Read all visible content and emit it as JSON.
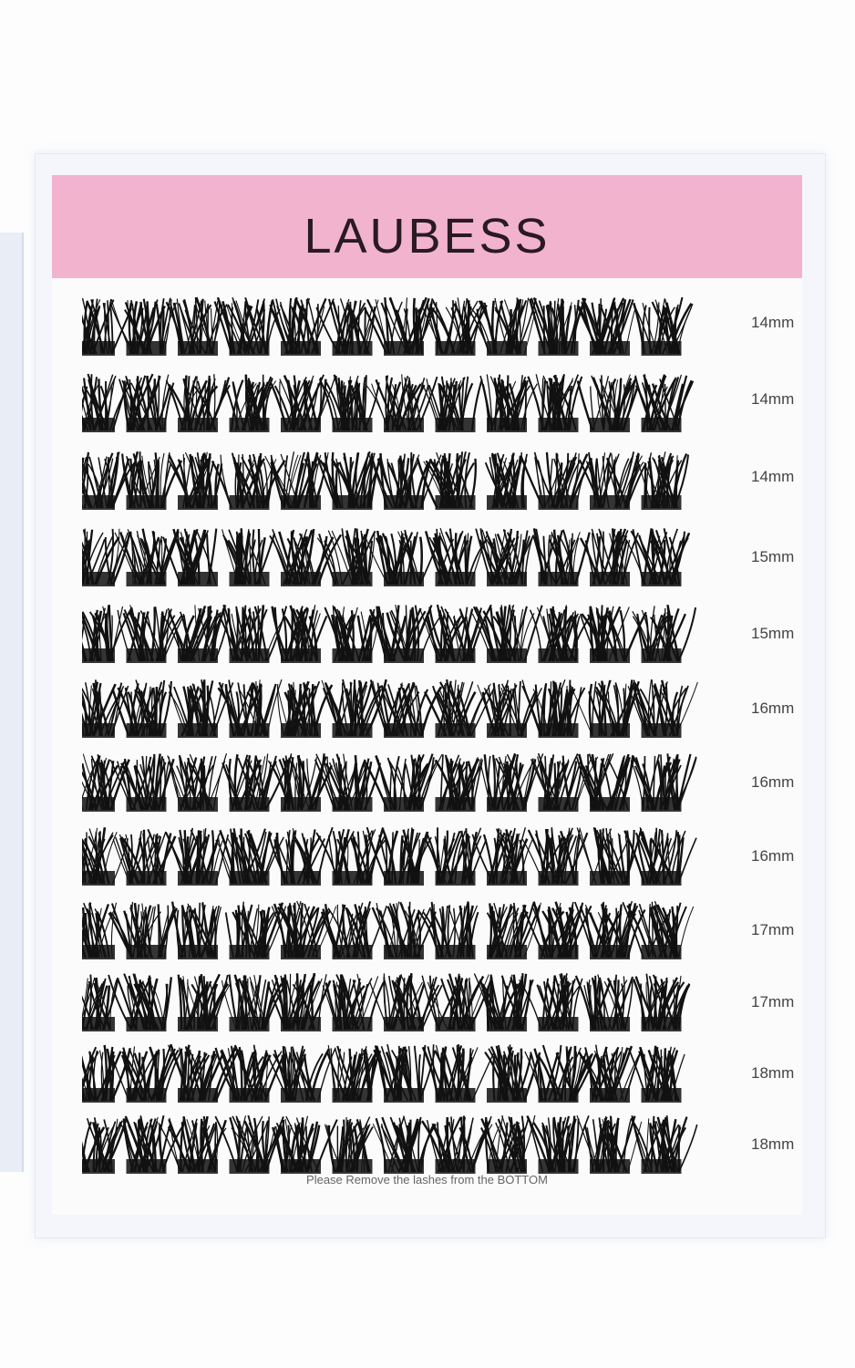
{
  "brand": "LAUBESS",
  "rows": [
    {
      "length": "14mm"
    },
    {
      "length": "14mm"
    },
    {
      "length": "14mm"
    },
    {
      "length": "15mm"
    },
    {
      "length": "15mm"
    },
    {
      "length": "16mm"
    },
    {
      "length": "16mm"
    },
    {
      "length": "16mm"
    },
    {
      "length": "17mm"
    },
    {
      "length": "17mm"
    },
    {
      "length": "18mm"
    },
    {
      "length": "18mm"
    }
  ],
  "notice": "Please Remove the lashes from the BOTTOM",
  "colors": {
    "header": "#f2b3cf",
    "lash": "#111111"
  }
}
